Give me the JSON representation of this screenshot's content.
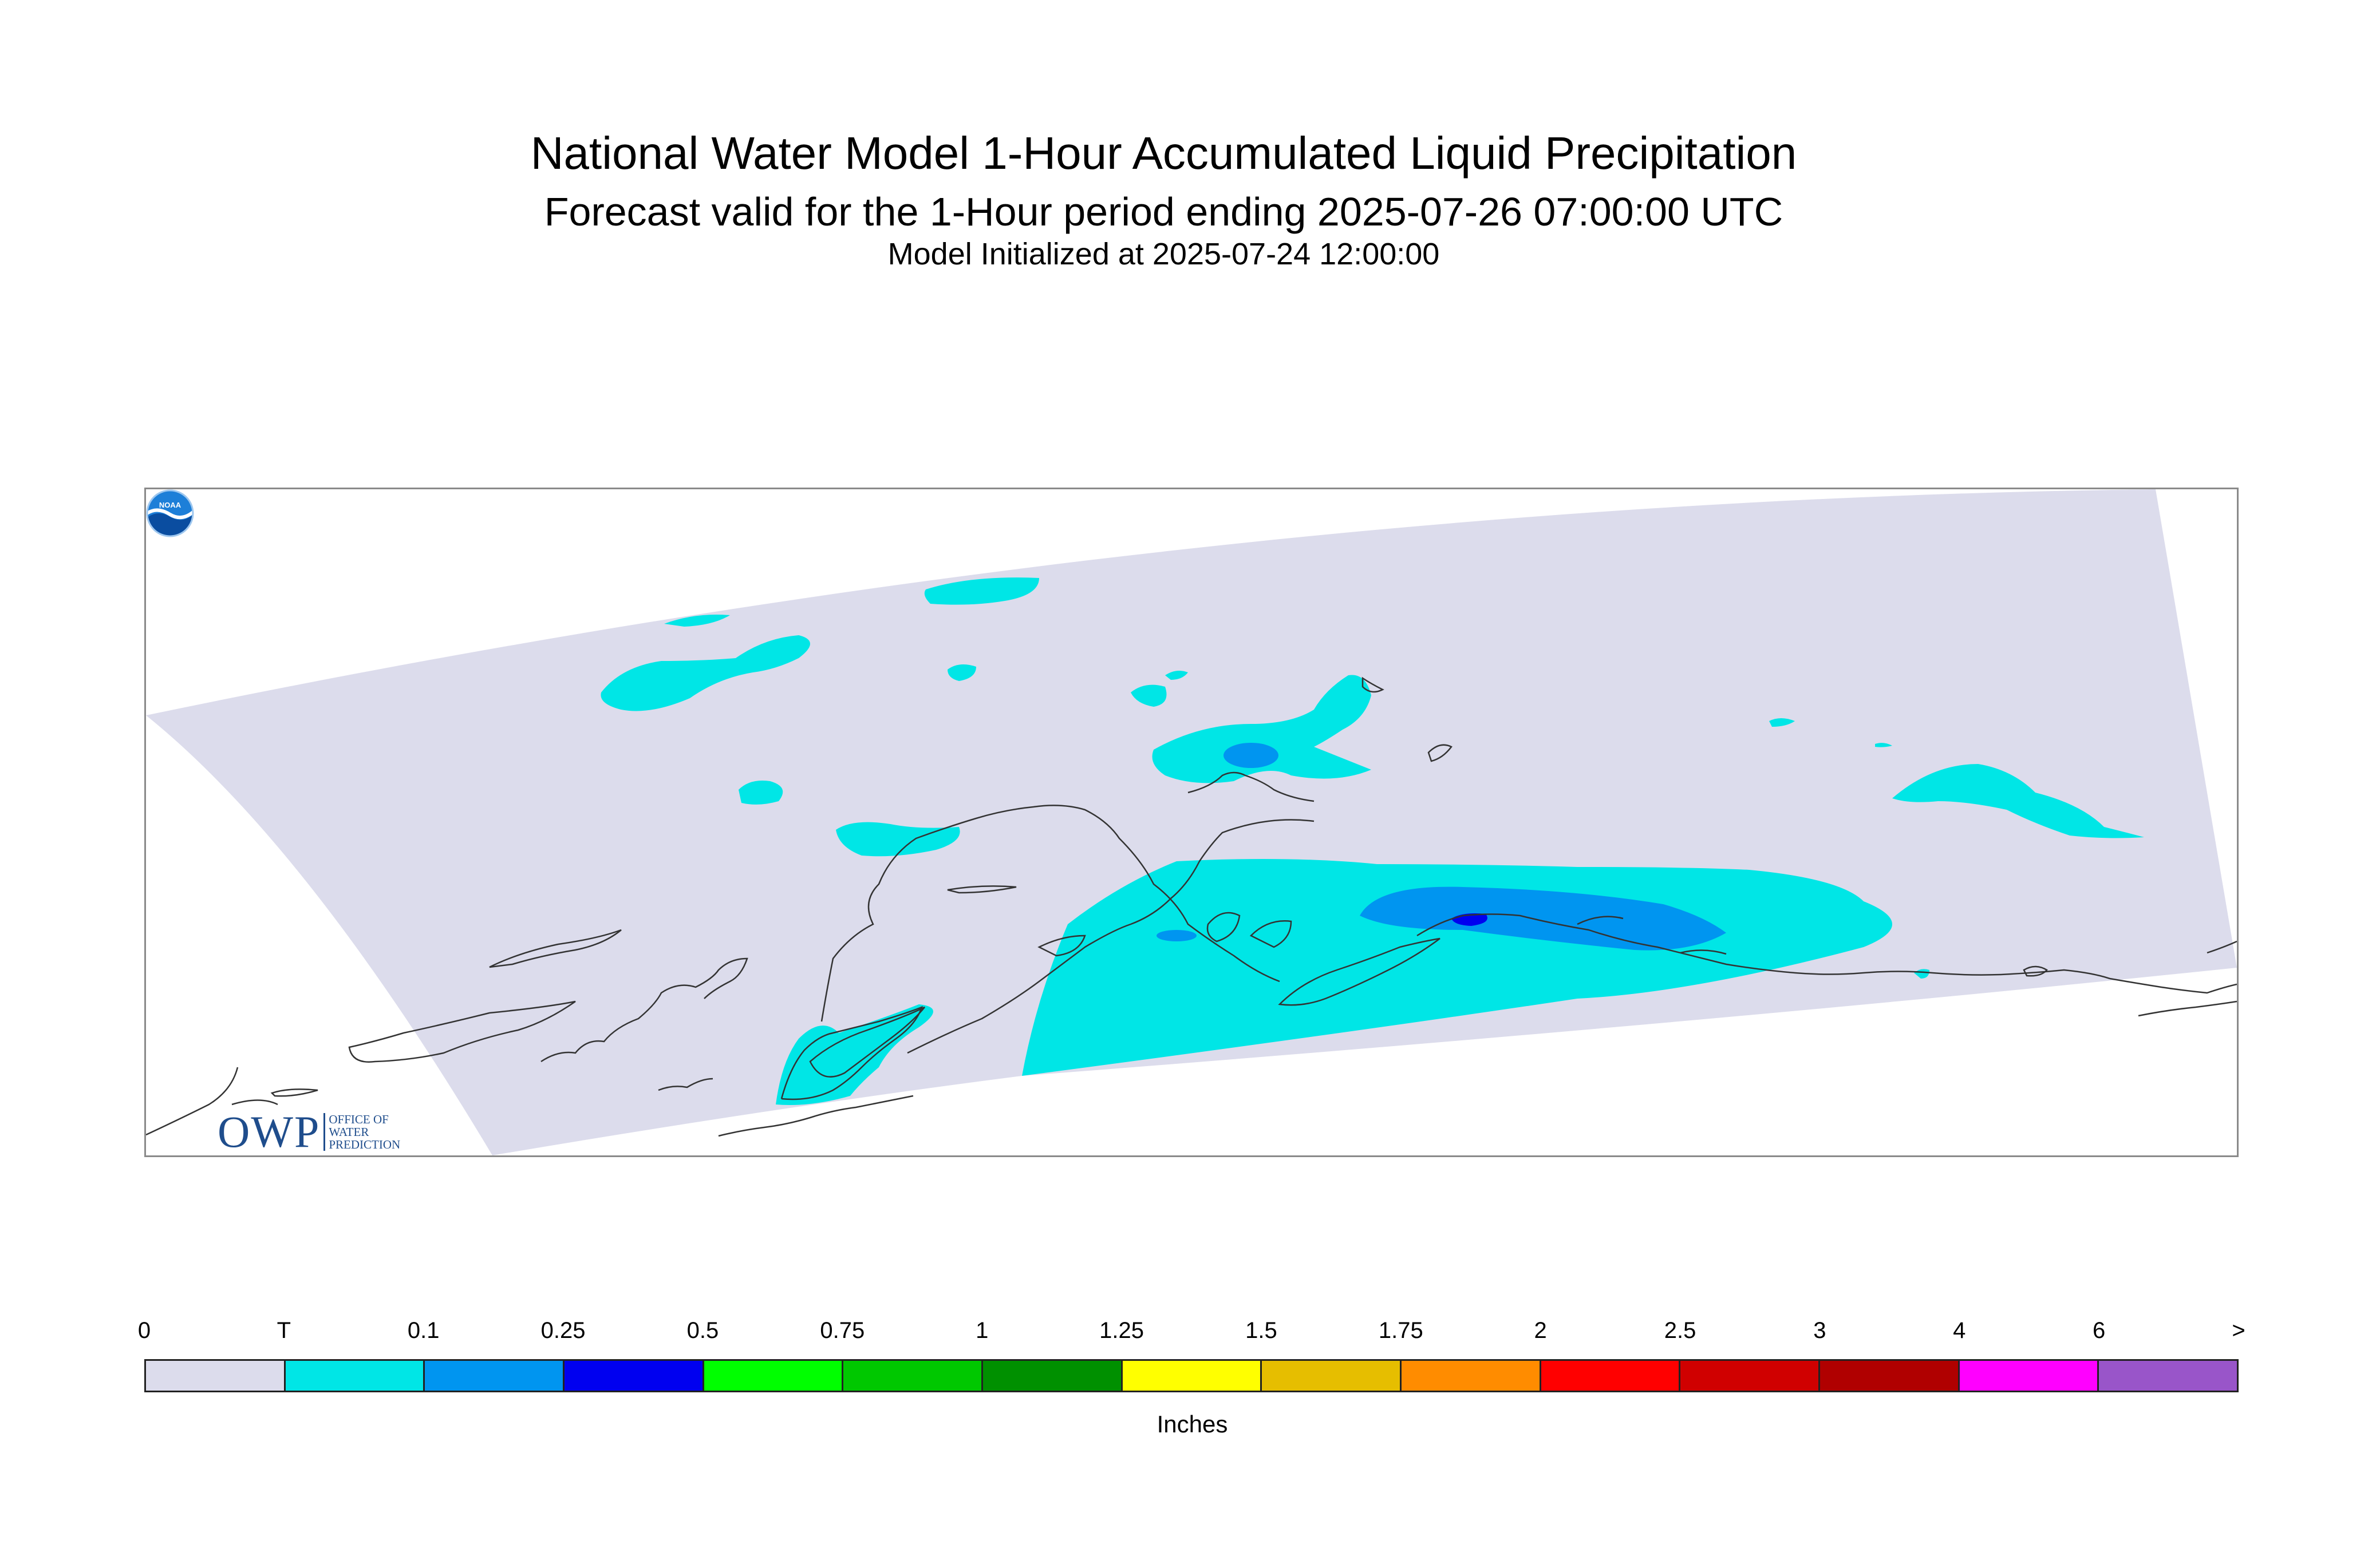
{
  "header": {
    "title": "National Water Model 1-Hour Accumulated Liquid Precipitation",
    "subtitle": "Forecast valid for the 1-Hour period ending 2025-07-26 07:00:00 UTC",
    "init": "Model Initialized at 2025-07-24 12:00:00"
  },
  "logos": {
    "owp_big": "OWP",
    "owp_line1": "OFFICE OF",
    "owp_line2": "WATER",
    "owp_line3": "PREDICTION",
    "noaa": "NOAA"
  },
  "colors": {
    "domain_fill": "#dcdcec",
    "coastline": "#333333",
    "trace": "#00e6e6",
    "c010": "#0095f0",
    "c025": "#0000f0"
  },
  "legend": {
    "labels": [
      "0",
      "T",
      "0.1",
      "0.25",
      "0.5",
      "0.75",
      "1",
      "1.25",
      "1.5",
      "1.75",
      "2",
      "2.5",
      "3",
      "4",
      "6",
      ">"
    ],
    "colors": [
      "#dcdcec",
      "#00e6e6",
      "#0095f0",
      "#0000f0",
      "#00ff00",
      "#00c800",
      "#009000",
      "#ffff00",
      "#e6be00",
      "#ff8c00",
      "#ff0000",
      "#d00000",
      "#b00000",
      "#ff00ff",
      "#9955c9"
    ],
    "unit": "Inches"
  }
}
